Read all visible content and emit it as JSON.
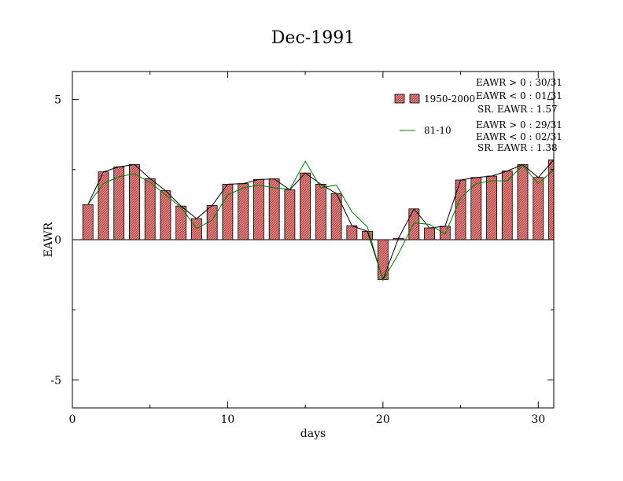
{
  "chart_data": {
    "type": "bar",
    "title": "Dec-1991",
    "xlabel": "days",
    "ylabel": "EAWR",
    "xlim": [
      0,
      31
    ],
    "ylim": [
      -6,
      6
    ],
    "x_ticks": [
      0,
      10,
      20,
      30
    ],
    "y_ticks": [
      -5,
      0,
      5
    ],
    "x_tick_labels": [
      "0",
      "10",
      "20",
      "30"
    ],
    "y_tick_labels": [
      "-5",
      "0",
      "5"
    ],
    "grid": false,
    "x": [
      1,
      2,
      3,
      4,
      5,
      6,
      7,
      8,
      9,
      10,
      11,
      12,
      13,
      14,
      15,
      16,
      17,
      18,
      19,
      20,
      21,
      22,
      23,
      24,
      25,
      26,
      27,
      28,
      29,
      30,
      31
    ],
    "series": [
      {
        "name": "1950-2000",
        "kind": "bar",
        "color": "#e87d7d",
        "values": [
          1.25,
          2.42,
          2.6,
          2.68,
          2.18,
          1.75,
          1.2,
          0.75,
          1.22,
          1.98,
          2.0,
          2.15,
          2.17,
          1.78,
          2.38,
          1.98,
          1.65,
          0.5,
          0.3,
          -1.42,
          0.05,
          1.1,
          0.42,
          0.48,
          2.13,
          2.22,
          2.27,
          2.45,
          2.68,
          2.22,
          2.85
        ]
      },
      {
        "name": "81-10",
        "kind": "line",
        "color": "#008000",
        "values": [
          1.25,
          2.0,
          2.25,
          2.35,
          2.05,
          1.6,
          1.15,
          0.4,
          0.7,
          1.6,
          1.85,
          1.95,
          1.85,
          1.8,
          2.8,
          1.85,
          1.95,
          1.0,
          0.45,
          -1.45,
          -0.5,
          0.6,
          0.55,
          0.2,
          1.5,
          2.0,
          2.1,
          2.1,
          2.65,
          2.0,
          2.5
        ]
      }
    ],
    "stats": [
      [
        "EAWR > 0 : 30/31",
        "EAWR < 0 : 01/31",
        "SR. EAWR :  1.57"
      ],
      [
        "EAWR > 0 : 29/31",
        "EAWR < 0 : 02/31",
        "SR. EAWR :  1.38"
      ]
    ],
    "legend_position": "top-right"
  }
}
